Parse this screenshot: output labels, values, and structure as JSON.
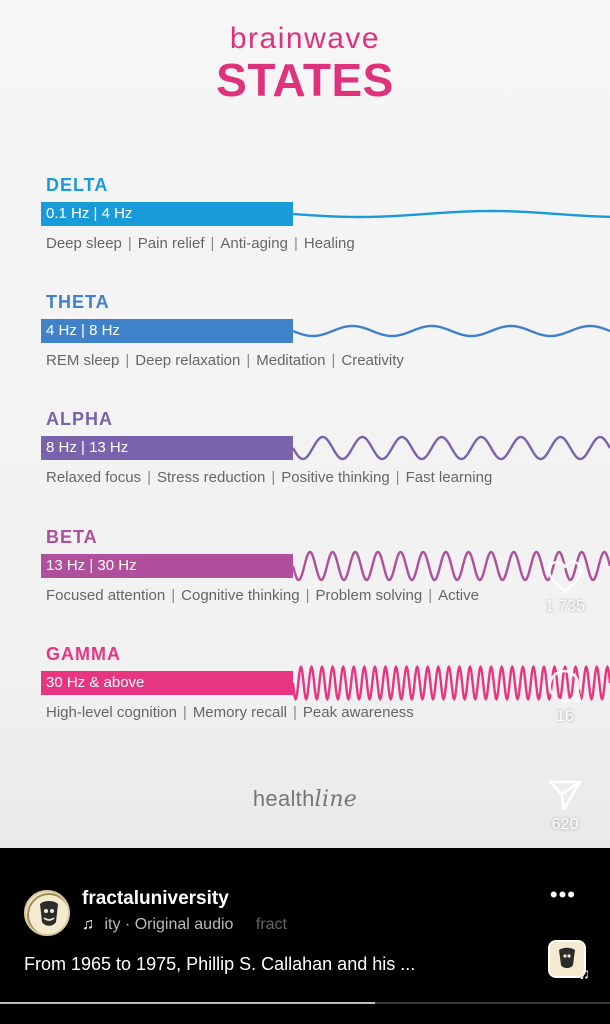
{
  "infographic": {
    "title_top": "brainwave",
    "title_main": "STATES",
    "title_color": "#e0317c",
    "waves": [
      {
        "name": "DELTA",
        "range": "0.1 Hz | 4 Hz",
        "color": "#1a9bd9",
        "tags": [
          "Deep sleep",
          "Pain relief",
          "Anti-aging",
          "Healing"
        ]
      },
      {
        "name": "THETA",
        "range": "4 Hz | 8 Hz",
        "color": "#3f82c9",
        "tags": [
          "REM sleep",
          "Deep relaxation",
          "Meditation",
          "Creativity"
        ]
      },
      {
        "name": "ALPHA",
        "range": "8 Hz | 13 Hz",
        "color": "#7a62ad",
        "tags": [
          "Relaxed focus",
          "Stress reduction",
          "Positive thinking",
          "Fast learning"
        ]
      },
      {
        "name": "BETA",
        "range": "13 Hz | 30 Hz",
        "color": "#b04f9b",
        "tags": [
          "Focused attention",
          "Cognitive thinking",
          "Problem solving",
          "Active"
        ]
      },
      {
        "name": "GAMMA",
        "range": "30 Hz & above",
        "color": "#e8357f",
        "tags": [
          "High-level cognition",
          "Memory recall",
          "Peak awareness"
        ]
      }
    ],
    "brand_part1": "health",
    "brand_part2": "line",
    "separator": "|"
  },
  "actions": {
    "like_count": "1.735",
    "comment_count": "16",
    "share_count": "620"
  },
  "post": {
    "username": "fractaluniversity",
    "audio_prefix": "ity",
    "audio_label": "Original audio",
    "audio_dot": "·",
    "audio_trailing": "fract",
    "caption": "From 1965 to 1975, Phillip S. Callahan and his ...",
    "more": "•••",
    "progress": 0.615
  },
  "icons": {
    "like": "heart-icon",
    "comment": "comment-bubble-icon",
    "share": "send-paper-plane-icon",
    "music": "music-note-icon"
  }
}
